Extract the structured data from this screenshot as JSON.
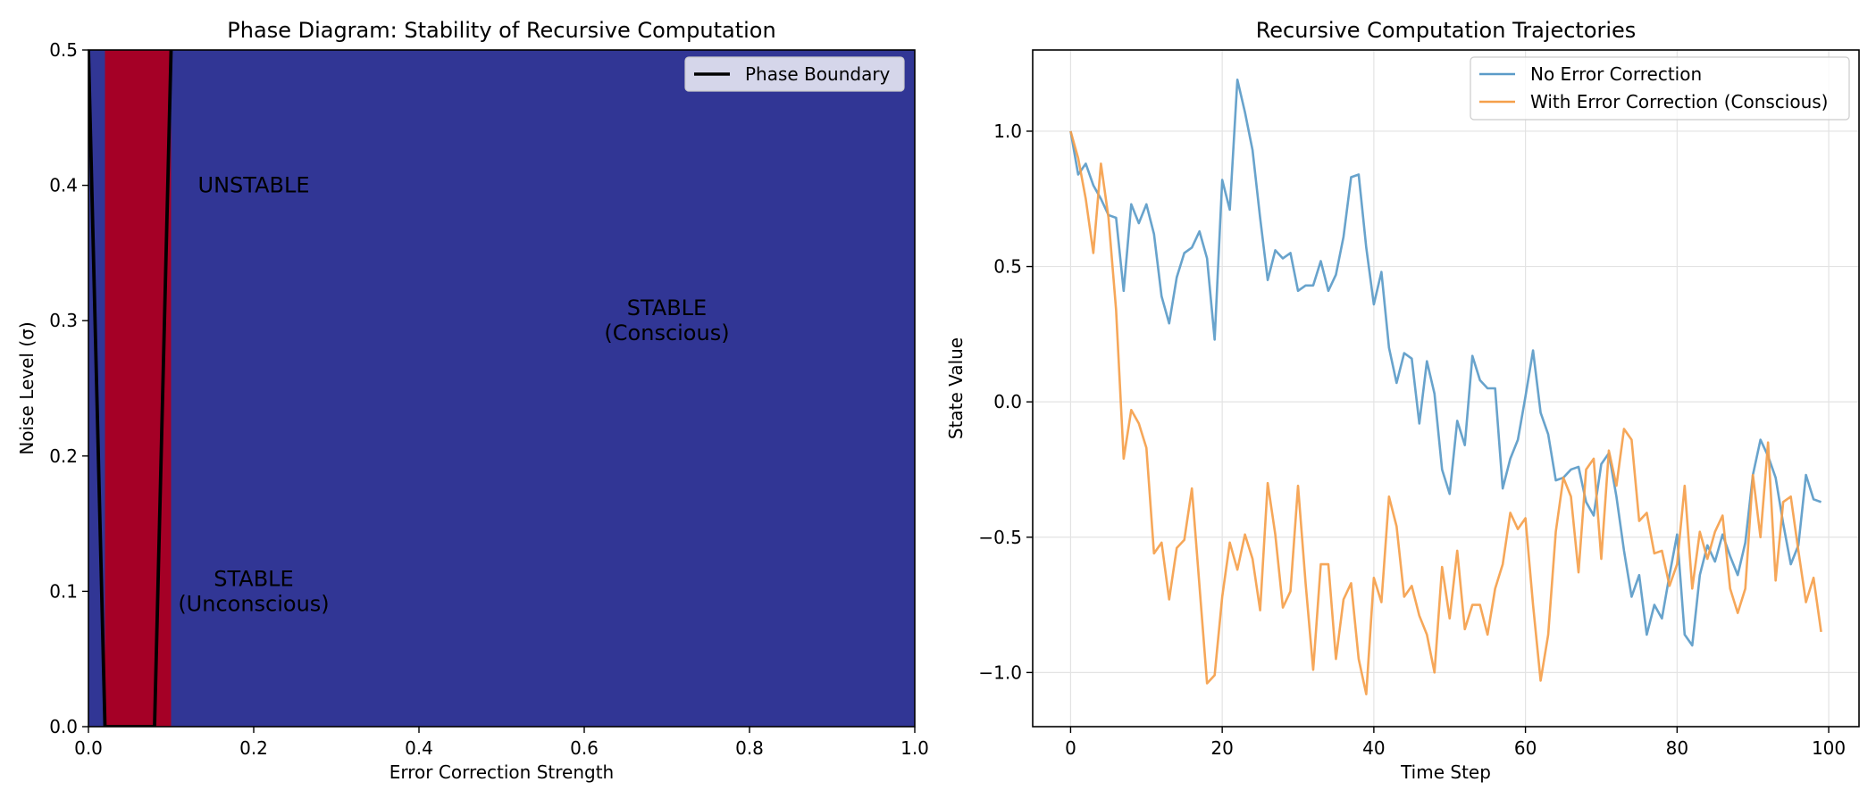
{
  "chart_data": [
    {
      "type": "heatmap",
      "title": "Phase Diagram: Stability of Recursive Computation",
      "xlabel": "Error Correction Strength",
      "ylabel": "Noise Level (σ)",
      "xlim": [
        0.0,
        1.0
      ],
      "ylim": [
        0.0,
        0.5
      ],
      "xticks": [
        "0.0",
        "0.2",
        "0.4",
        "0.6",
        "0.8",
        "1.0"
      ],
      "xtick_values": [
        0.0,
        0.2,
        0.4,
        0.6,
        0.8,
        1.0
      ],
      "yticks": [
        "0.0",
        "0.1",
        "0.2",
        "0.3",
        "0.4",
        "0.5"
      ],
      "ytick_values": [
        0.0,
        0.1,
        0.2,
        0.3,
        0.4,
        0.5
      ],
      "colors": {
        "stable": "#313695",
        "unstable": "#a50026",
        "boundary": "#000000"
      },
      "regions": [
        {
          "state": "stable",
          "x_range": [
            0.0,
            0.02
          ]
        },
        {
          "state": "unstable",
          "x_range": [
            0.02,
            0.1
          ]
        },
        {
          "state": "stable",
          "x_range": [
            0.1,
            1.0
          ]
        }
      ],
      "phase_boundary": {
        "name": "Phase Boundary",
        "segments": [
          [
            [
              0.0,
              0.5
            ],
            [
              0.02,
              0.0
            ]
          ],
          [
            [
              0.08,
              0.0
            ],
            [
              0.1,
              0.5
            ]
          ],
          [
            [
              0.02,
              0.0
            ],
            [
              0.08,
              0.0
            ]
          ]
        ]
      },
      "annotations": [
        {
          "text": "UNSTABLE",
          "x": 0.2,
          "y": 0.4
        },
        {
          "text": "STABLE\n(Conscious)",
          "x": 0.7,
          "y": 0.3
        },
        {
          "text": "STABLE\n(Unconscious)",
          "x": 0.2,
          "y": 0.1
        }
      ],
      "legend": {
        "position": "upper right",
        "entries": [
          "Phase Boundary"
        ]
      },
      "grid": false
    },
    {
      "type": "line",
      "title": "Recursive Computation Trajectories",
      "xlabel": "Time Step",
      "ylabel": "State Value",
      "xlim": [
        -5,
        104
      ],
      "ylim": [
        -1.2,
        1.3
      ],
      "xticks": [
        "0",
        "20",
        "40",
        "60",
        "80",
        "100"
      ],
      "xtick_values": [
        0,
        20,
        40,
        60,
        80,
        100
      ],
      "yticks": [
        "−1.0",
        "−0.5",
        "0.0",
        "0.5",
        "1.0"
      ],
      "ytick_values": [
        -1.0,
        -0.5,
        0.0,
        0.5,
        1.0
      ],
      "grid": true,
      "legend": {
        "position": "upper right"
      },
      "series": [
        {
          "name": "No Error Correction",
          "color": "#5b9bc8",
          "x_start": 0,
          "values": [
            1.0,
            0.84,
            0.88,
            0.8,
            0.75,
            0.69,
            0.68,
            0.41,
            0.73,
            0.66,
            0.73,
            0.62,
            0.39,
            0.29,
            0.46,
            0.55,
            0.57,
            0.63,
            0.53,
            0.23,
            0.82,
            0.71,
            1.19,
            1.07,
            0.93,
            0.68,
            0.45,
            0.56,
            0.53,
            0.55,
            0.41,
            0.43,
            0.43,
            0.52,
            0.41,
            0.47,
            0.61,
            0.83,
            0.84,
            0.57,
            0.36,
            0.48,
            0.2,
            0.07,
            0.18,
            0.16,
            -0.08,
            0.15,
            0.03,
            -0.25,
            -0.34,
            -0.07,
            -0.16,
            0.17,
            0.08,
            0.05,
            0.05,
            -0.32,
            -0.21,
            -0.14,
            0.02,
            0.19,
            -0.04,
            -0.12,
            -0.29,
            -0.28,
            -0.25,
            -0.24,
            -0.37,
            -0.42,
            -0.23,
            -0.19,
            -0.35,
            -0.55,
            -0.72,
            -0.64,
            -0.86,
            -0.75,
            -0.8,
            -0.64,
            -0.49,
            -0.86,
            -0.9,
            -0.64,
            -0.53,
            -0.59,
            -0.49,
            -0.57,
            -0.64,
            -0.52,
            -0.27,
            -0.14,
            -0.2,
            -0.28,
            -0.45,
            -0.6,
            -0.53,
            -0.27,
            -0.36,
            -0.37
          ]
        },
        {
          "name": "With Error Correction (Conscious)",
          "color": "#f5a04b",
          "x_start": 0,
          "values": [
            1.0,
            0.9,
            0.75,
            0.55,
            0.88,
            0.68,
            0.34,
            -0.21,
            -0.03,
            -0.08,
            -0.17,
            -0.56,
            -0.52,
            -0.73,
            -0.54,
            -0.51,
            -0.32,
            -0.68,
            -1.04,
            -1.01,
            -0.72,
            -0.52,
            -0.62,
            -0.49,
            -0.58,
            -0.77,
            -0.3,
            -0.49,
            -0.76,
            -0.7,
            -0.31,
            -0.67,
            -0.99,
            -0.6,
            -0.6,
            -0.95,
            -0.73,
            -0.67,
            -0.95,
            -1.08,
            -0.65,
            -0.74,
            -0.35,
            -0.46,
            -0.72,
            -0.68,
            -0.79,
            -0.86,
            -1.0,
            -0.61,
            -0.8,
            -0.55,
            -0.84,
            -0.75,
            -0.75,
            -0.86,
            -0.69,
            -0.6,
            -0.41,
            -0.47,
            -0.43,
            -0.75,
            -1.03,
            -0.86,
            -0.48,
            -0.28,
            -0.35,
            -0.63,
            -0.25,
            -0.21,
            -0.58,
            -0.18,
            -0.31,
            -0.1,
            -0.14,
            -0.44,
            -0.41,
            -0.56,
            -0.55,
            -0.68,
            -0.6,
            -0.31,
            -0.69,
            -0.48,
            -0.58,
            -0.48,
            -0.42,
            -0.69,
            -0.78,
            -0.69,
            -0.27,
            -0.5,
            -0.15,
            -0.66,
            -0.37,
            -0.35,
            -0.55,
            -0.74,
            -0.65,
            -0.85
          ]
        }
      ]
    }
  ]
}
